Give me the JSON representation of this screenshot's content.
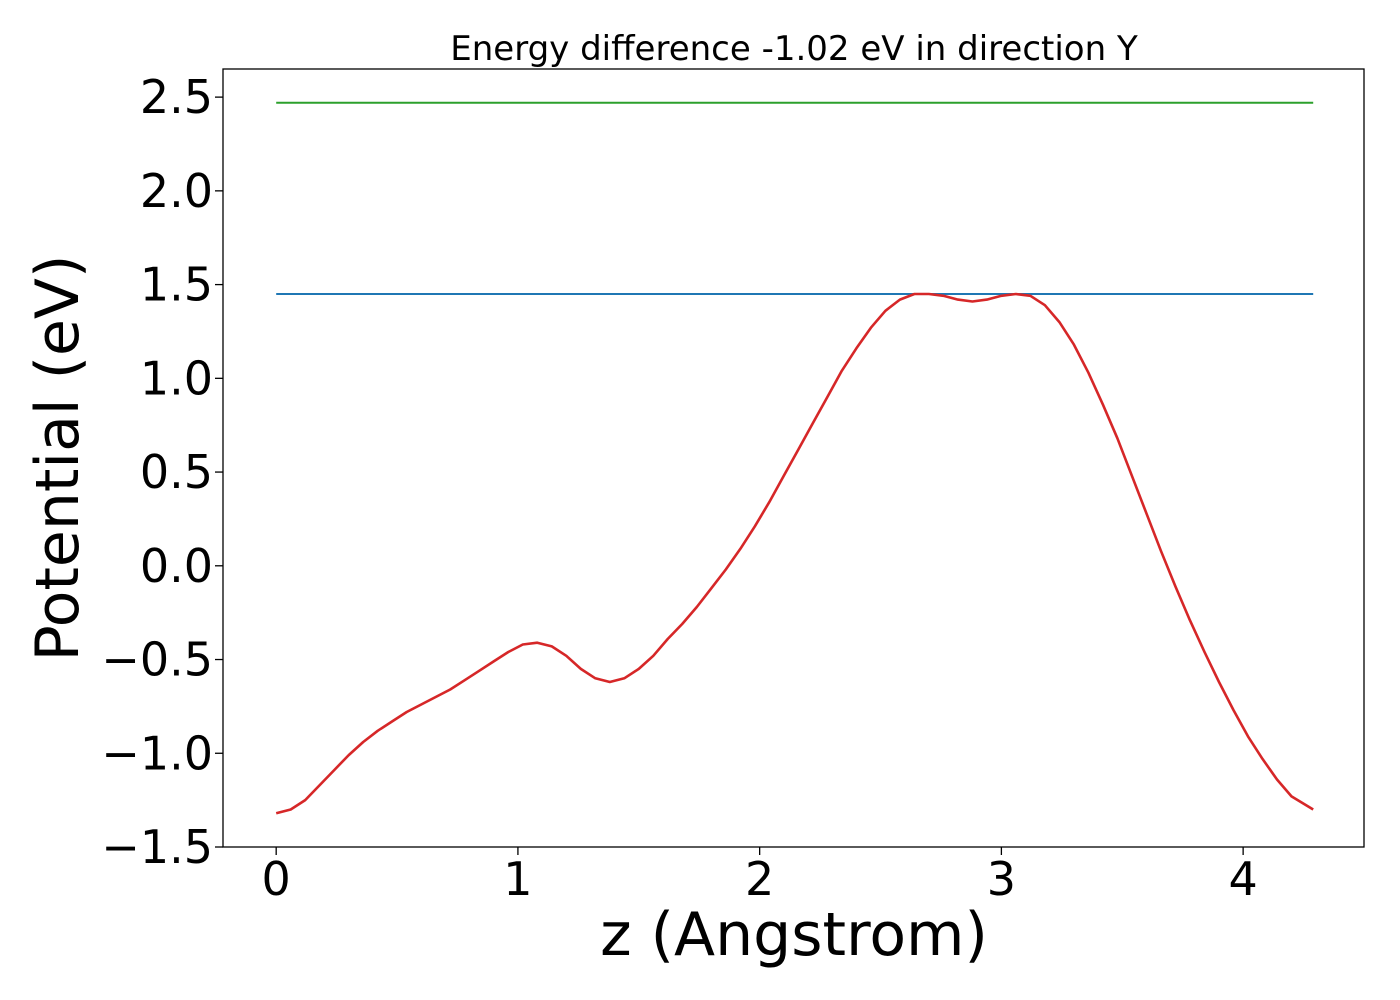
{
  "chart_data": {
    "type": "line",
    "title": "Energy difference -1.02 eV in direction Y",
    "xlabel": "z (Angstrom)",
    "ylabel": "Potential (eV)",
    "xlim": [
      -0.22,
      4.5
    ],
    "ylim": [
      -1.5,
      2.65
    ],
    "xticks": [
      0,
      1,
      2,
      3,
      4
    ],
    "xtick_labels": [
      "0",
      "1",
      "2",
      "3",
      "4"
    ],
    "yticks": [
      -1.5,
      -1.0,
      -0.5,
      0.0,
      0.5,
      1.0,
      1.5,
      2.0,
      2.5
    ],
    "ytick_labels": [
      "−1.5",
      "−1.0",
      "−0.5",
      "0.0",
      "0.5",
      "1.0",
      "1.5",
      "2.0",
      "2.5"
    ],
    "grid": false,
    "series": [
      {
        "color": "#2ca02c",
        "x": [
          0,
          4.29
        ],
        "y": [
          2.47,
          2.47
        ]
      },
      {
        "color": "#1f77b4",
        "x": [
          0,
          4.29
        ],
        "y": [
          1.45,
          1.45
        ]
      },
      {
        "color": "#d62728",
        "x": [
          0,
          0.06,
          0.12,
          0.18,
          0.24,
          0.3,
          0.36,
          0.42,
          0.48,
          0.54,
          0.6,
          0.66,
          0.72,
          0.78,
          0.84,
          0.9,
          0.96,
          1.02,
          1.08,
          1.14,
          1.2,
          1.26,
          1.32,
          1.38,
          1.44,
          1.5,
          1.56,
          1.62,
          1.68,
          1.74,
          1.8,
          1.86,
          1.92,
          1.98,
          2.04,
          2.1,
          2.16,
          2.22,
          2.28,
          2.34,
          2.4,
          2.46,
          2.52,
          2.58,
          2.64,
          2.7,
          2.76,
          2.82,
          2.88,
          2.94,
          3.0,
          3.06,
          3.12,
          3.18,
          3.24,
          3.3,
          3.36,
          3.42,
          3.48,
          3.54,
          3.6,
          3.66,
          3.72,
          3.78,
          3.84,
          3.9,
          3.96,
          4.02,
          4.08,
          4.14,
          4.2,
          4.29
        ],
        "y": [
          -1.32,
          -1.3,
          -1.25,
          -1.17,
          -1.09,
          -1.01,
          -0.94,
          -0.88,
          -0.83,
          -0.78,
          -0.74,
          -0.7,
          -0.66,
          -0.61,
          -0.56,
          -0.51,
          -0.46,
          -0.42,
          -0.41,
          -0.43,
          -0.48,
          -0.55,
          -0.6,
          -0.62,
          -0.6,
          -0.55,
          -0.48,
          -0.39,
          -0.31,
          -0.22,
          -0.12,
          -0.02,
          0.09,
          0.21,
          0.34,
          0.48,
          0.62,
          0.76,
          0.9,
          1.04,
          1.16,
          1.27,
          1.36,
          1.42,
          1.45,
          1.45,
          1.44,
          1.42,
          1.41,
          1.42,
          1.44,
          1.45,
          1.44,
          1.39,
          1.3,
          1.18,
          1.03,
          0.86,
          0.68,
          0.48,
          0.28,
          0.08,
          -0.11,
          -0.29,
          -0.46,
          -0.62,
          -0.77,
          -0.91,
          -1.03,
          -1.14,
          -1.23,
          -1.3
        ]
      }
    ]
  }
}
